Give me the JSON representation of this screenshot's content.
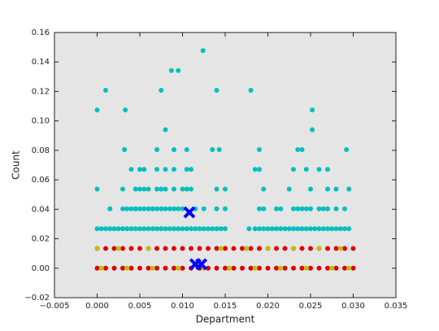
{
  "chart_data": {
    "type": "scatter",
    "xlabel": "Department",
    "ylabel": "Count",
    "xlim": [
      -0.005,
      0.035
    ],
    "xticks": [
      {
        "value": -0.005,
        "label": "−0.005"
      },
      {
        "value": 0,
        "label": "0.000"
      },
      0.005,
      {
        "value": 0.01,
        "label": "0.010"
      },
      0.015,
      {
        "value": 0.02,
        "label": "0.020"
      },
      0.025,
      {
        "value": 0.03,
        "label": "0.030"
      },
      0.035
    ],
    "ylim": [
      -0.02,
      0.16
    ],
    "yticks": [
      {
        "value": -0.02,
        "label": "−0.02"
      },
      {
        "value": 0,
        "label": "0.00"
      },
      0.02,
      0.04,
      0.06,
      0.08,
      {
        "value": 0.1,
        "label": "0.10"
      },
      0.12,
      0.14,
      0.16
    ],
    "background": "#e5e5e5",
    "series": [
      {
        "color": "#00bfbf",
        "marker": "o",
        "x": [
          0,
          0.0005,
          0.001,
          0.0015,
          0.002,
          0.0025,
          0.003,
          0.0035,
          0.004,
          0.0045,
          0.005,
          0.0055,
          0.006,
          0.0065,
          0.007,
          0.0075,
          0.008,
          0.0085,
          0.009,
          0.0095,
          0.01,
          0.0105,
          0.011,
          0.0115,
          0.012,
          0.0125,
          0.013,
          0.0135,
          0.014,
          0.0145,
          0.015,
          0.0178,
          0.0185,
          0.019,
          0.0195,
          0.02,
          0.0205,
          0.021,
          0.0215,
          0.022,
          0.0225,
          0.023,
          0.0235,
          0.024,
          0.0245,
          0.025,
          0.0255,
          0.026,
          0.0265,
          0.027,
          0.0275,
          0.028,
          0.0285,
          0.029,
          0.0295
        ],
        "values": [
          0.0268,
          0.0268,
          0.0268,
          0.0268,
          0.0268,
          0.0268,
          0.0268,
          0.0268,
          0.0268,
          0.0268,
          0.0268,
          0.0268,
          0.0268,
          0.0268,
          0.0268,
          0.0268,
          0.0268,
          0.0268,
          0.0268,
          0.0268,
          0.0268,
          0.0268,
          0.0268,
          0.0268,
          0.0268,
          0.0268,
          0.0268,
          0.0268,
          0.0268,
          0.0268,
          0.0268,
          0.0268,
          0.0268,
          0.0268,
          0.0268,
          0.0268,
          0.0268,
          0.0268,
          0.0268,
          0.0268,
          0.0268,
          0.0268,
          0.0268,
          0.0268,
          0.0268,
          0.0268,
          0.0268,
          0.0268,
          0.0268,
          0.0268,
          0.0268,
          0.0268,
          0.0268,
          0.0268,
          0.0268
        ]
      },
      {
        "color": "#00bfbf",
        "marker": "o",
        "x": [
          0.0015,
          0.003,
          0.0035,
          0.004,
          0.0045,
          0.005,
          0.0055,
          0.006,
          0.0065,
          0.007,
          0.0075,
          0.008,
          0.0085,
          0.009,
          0.0095,
          0.01,
          0.0115,
          0.0125,
          0.014,
          0.015,
          0.019,
          0.0195,
          0.021,
          0.0215,
          0.023,
          0.0235,
          0.024,
          0.0245,
          0.025,
          0.026,
          0.0265,
          0.027,
          0.028,
          0.029
        ],
        "values": [
          0.0403,
          0.0403,
          0.0403,
          0.0403,
          0.0403,
          0.0403,
          0.0403,
          0.0403,
          0.0403,
          0.0403,
          0.0403,
          0.0403,
          0.0403,
          0.0403,
          0.0403,
          0.0403,
          0.0403,
          0.0403,
          0.0403,
          0.0403,
          0.0403,
          0.0403,
          0.0403,
          0.0403,
          0.0403,
          0.0403,
          0.0403,
          0.0403,
          0.0403,
          0.0403,
          0.0403,
          0.0403,
          0.0403,
          0.0403
        ]
      },
      {
        "color": "#00bfbf",
        "marker": "o",
        "x": [
          0,
          0.003,
          0.0045,
          0.005,
          0.0055,
          0.006,
          0.007,
          0.0075,
          0.008,
          0.009,
          0.01,
          0.0105,
          0.011,
          0.014,
          0.015,
          0.0195,
          0.0225,
          0.025,
          0.027,
          0.028,
          0.0295
        ],
        "values": [
          0.0537,
          0.0537,
          0.0537,
          0.0537,
          0.0537,
          0.0537,
          0.0537,
          0.0537,
          0.0537,
          0.0537,
          0.0537,
          0.0537,
          0.0537,
          0.0537,
          0.0537,
          0.0537,
          0.0537,
          0.0537,
          0.0537,
          0.0537,
          0.0537
        ]
      },
      {
        "color": "#00bfbf",
        "marker": "o",
        "x": [
          0.004,
          0.005,
          0.0055,
          0.007,
          0.008,
          0.009,
          0.0105,
          0.011,
          0.0185,
          0.019,
          0.023,
          0.0245,
          0.026,
          0.027
        ],
        "values": [
          0.0671,
          0.0671,
          0.0671,
          0.0671,
          0.0671,
          0.0671,
          0.0671,
          0.0671,
          0.0671,
          0.0671,
          0.0671,
          0.0671,
          0.0671,
          0.0671
        ]
      },
      {
        "color": "#00bfbf",
        "marker": "o",
        "x": [
          0.0124,
          0.0087,
          0.0095,
          0.001,
          0.0075,
          0.014,
          0.018,
          0,
          0.0033,
          0.0252,
          0.008,
          0.0252,
          0.0032,
          0.007,
          0.009,
          0.0105,
          0.0135,
          0.0143,
          0.019,
          0.0235,
          0.024,
          0.0292
        ],
        "values": [
          0.1477,
          0.1342,
          0.1342,
          0.1208,
          0.1208,
          0.1208,
          0.1208,
          0.1074,
          0.1074,
          0.1074,
          0.094,
          0.094,
          0.0805,
          0.0805,
          0.0805,
          0.0805,
          0.0805,
          0.0805,
          0.0805,
          0.0805,
          0.0805,
          0.0805
        ]
      },
      {
        "color": "#e00000",
        "marker": "o",
        "x": [
          0,
          0.001,
          0.002,
          0.003,
          0.004,
          0.005,
          0.006,
          0.007,
          0.008,
          0.009,
          0.01,
          0.011,
          0.012,
          0.013,
          0.014,
          0.015,
          0.016,
          0.017,
          0.018,
          0.019,
          0.02,
          0.021,
          0.022,
          0.023,
          0.024,
          0.025,
          0.026,
          0.027,
          0.028,
          0.029,
          0.03
        ],
        "values": [
          0,
          0,
          0,
          0,
          0,
          0,
          0,
          0,
          0,
          0,
          0,
          0,
          0,
          0,
          0,
          0,
          0,
          0,
          0,
          0,
          0,
          0,
          0,
          0,
          0,
          0,
          0,
          0,
          0,
          0,
          0
        ]
      },
      {
        "color": "#e00000",
        "marker": "o",
        "x": [
          0,
          0.001,
          0.002,
          0.003,
          0.004,
          0.005,
          0.006,
          0.007,
          0.008,
          0.009,
          0.01,
          0.011,
          0.012,
          0.013,
          0.014,
          0.015,
          0.016,
          0.017,
          0.018,
          0.019,
          0.02,
          0.021,
          0.022,
          0.023,
          0.024,
          0.025,
          0.026,
          0.027,
          0.028,
          0.029,
          0.03
        ],
        "values": [
          0.0134,
          0.0134,
          0.0134,
          0.0134,
          0.0134,
          0.0134,
          0.0134,
          0.0134,
          0.0134,
          0.0134,
          0.0134,
          0.0134,
          0.0134,
          0.0134,
          0.0134,
          0.0134,
          0.0134,
          0.0134,
          0.0134,
          0.0134,
          0.0134,
          0.0134,
          0.0134,
          0.0134,
          0.0134,
          0.0134,
          0.0134,
          0.0134,
          0.0134,
          0.0134,
          0.0134
        ]
      },
      {
        "color": "#bfbf00",
        "marker": "o",
        "x": [
          0.0005,
          0.0035,
          0.0065,
          0.0095,
          0.0125,
          0.0155,
          0.0185,
          0.0215,
          0.0245,
          0.0275,
          0.0295
        ],
        "values": [
          0,
          0,
          0,
          0,
          0,
          0,
          0,
          0,
          0,
          0,
          0
        ]
      },
      {
        "color": "#bfbf00",
        "marker": "o",
        "x": [
          0,
          0.0025,
          0.006,
          0.0145,
          0.0175,
          0.02,
          0.023,
          0.026,
          0.0285
        ],
        "values": [
          0.0134,
          0.0134,
          0.0134,
          0.0134,
          0.0134,
          0.0134,
          0.0134,
          0.0134,
          0.0134
        ]
      },
      {
        "color": "#0000ff",
        "marker": "x",
        "x": [
          0.0108,
          0.0115,
          0.0122
        ],
        "values": [
          0.0379,
          0.0027,
          0.0027
        ]
      }
    ]
  }
}
